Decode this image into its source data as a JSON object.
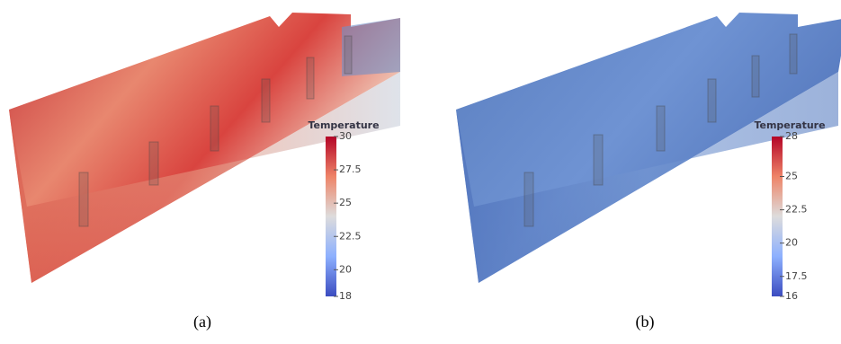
{
  "panels": [
    {
      "caption": "(a)",
      "colorbar": {
        "title": "Temperature",
        "range": [
          18,
          30
        ],
        "ticks": [
          30,
          27.5,
          25,
          22.5,
          20,
          18
        ]
      }
    },
    {
      "caption": "(b)",
      "colorbar": {
        "title": "Temperature",
        "range": [
          16,
          28
        ],
        "ticks": [
          28,
          25,
          22.5,
          20,
          17.5,
          16
        ]
      }
    }
  ]
}
